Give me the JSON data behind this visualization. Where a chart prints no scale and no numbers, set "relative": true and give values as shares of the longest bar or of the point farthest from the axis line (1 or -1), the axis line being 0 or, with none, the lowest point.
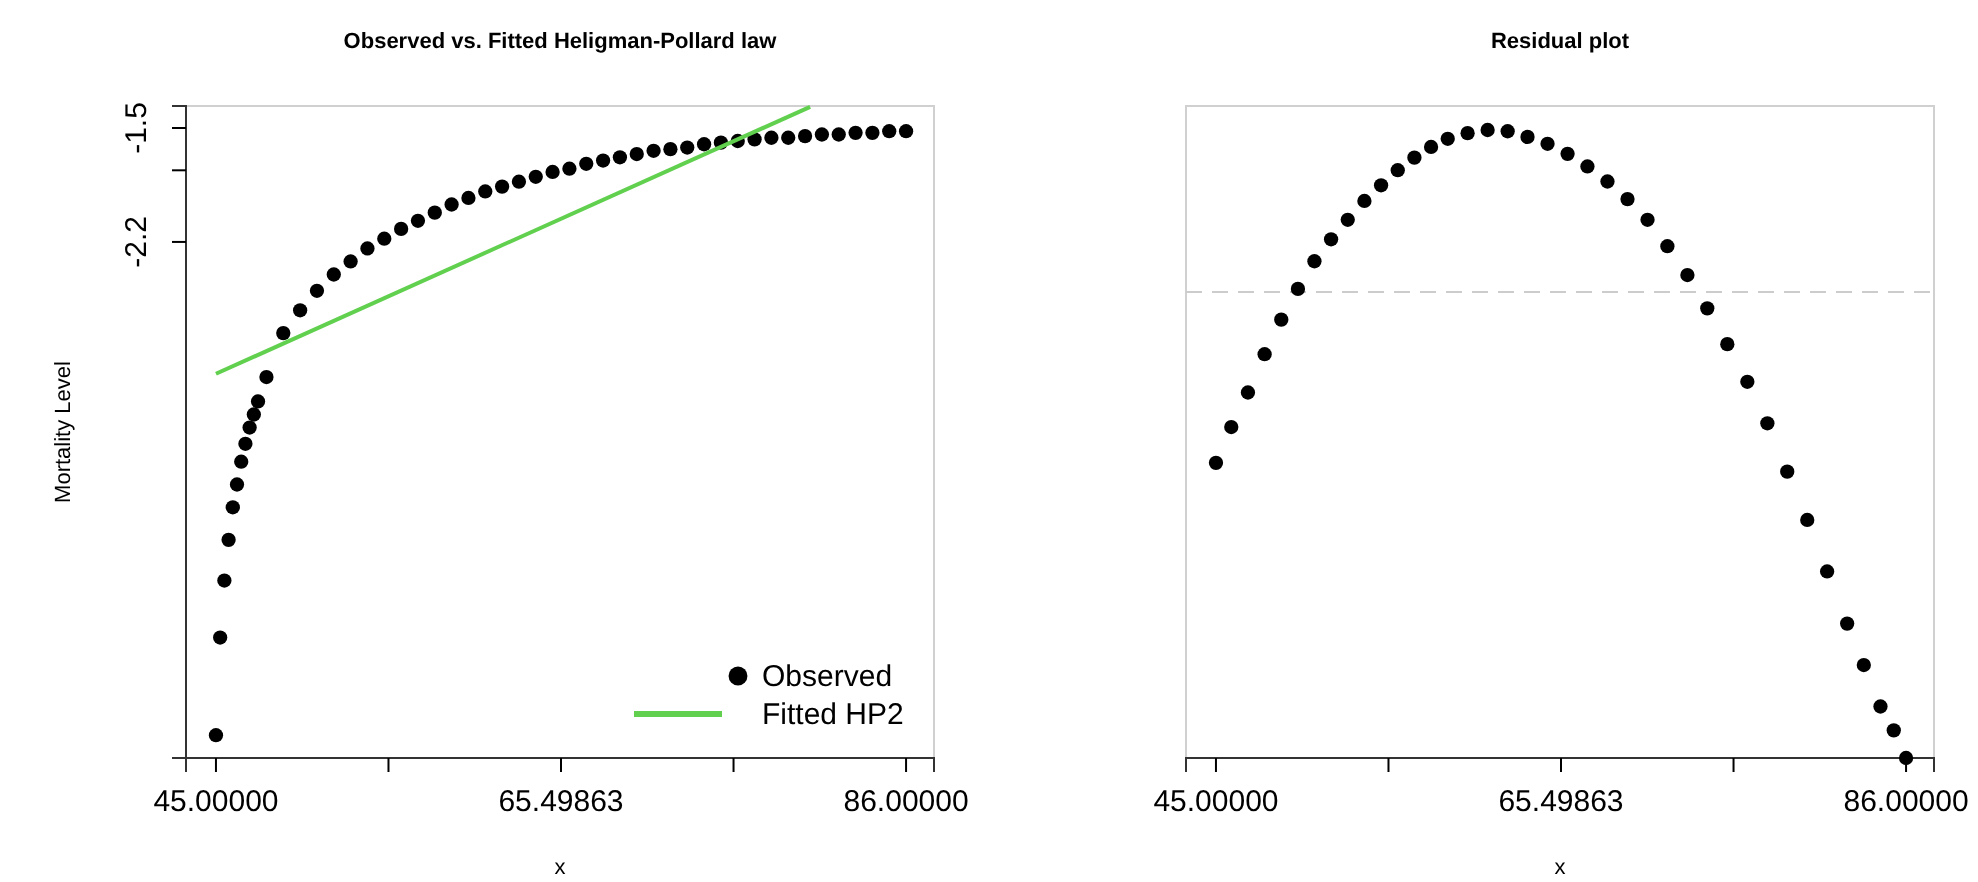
{
  "chart_data": [
    {
      "type": "scatter",
      "title": "Observed vs. Fitted Heligman-Pollard law",
      "xlabel": "x",
      "ylabel": "Mortality Level",
      "xlim": [
        43.22,
        87.66
      ],
      "ylim": [
        -5.37,
        -1.365
      ],
      "xticks": [
        {
          "value": 45,
          "label": "45.00000"
        },
        {
          "value": 55.25,
          "label": null
        },
        65.49863,
        {
          "value": 75.75,
          "label": null
        },
        {
          "value": 86,
          "label": "86.00000"
        }
      ],
      "yticks": [
        -1.5,
        {
          "value": -1.76,
          "label": null
        },
        -2.2
      ],
      "legend": "bottom right",
      "series": [
        {
          "name": "Observed",
          "marker": "circle",
          "color": "#000000",
          "x": [
            45,
            45.25,
            45.5,
            45.75,
            46,
            46.25,
            46.5,
            46.75,
            47,
            47.25,
            47.5,
            48,
            49,
            50,
            51,
            52,
            53,
            54,
            55,
            56,
            57,
            58,
            59,
            60,
            61,
            62,
            63,
            64,
            65,
            66,
            67,
            68,
            69,
            70,
            71,
            72,
            73,
            74,
            75,
            76,
            77,
            78,
            79,
            80,
            81,
            82,
            83,
            84,
            85,
            86
          ],
          "values": [
            -5.23,
            -4.63,
            -4.28,
            -4.03,
            -3.83,
            -3.69,
            -3.55,
            -3.44,
            -3.34,
            -3.26,
            -3.18,
            -3.03,
            -2.76,
            -2.62,
            -2.5,
            -2.4,
            -2.32,
            -2.24,
            -2.18,
            -2.12,
            -2.07,
            -2.02,
            -1.97,
            -1.93,
            -1.89,
            -1.86,
            -1.83,
            -1.8,
            -1.77,
            -1.75,
            -1.72,
            -1.7,
            -1.68,
            -1.66,
            -1.64,
            -1.63,
            -1.62,
            -1.6,
            -1.59,
            -1.58,
            -1.57,
            -1.56,
            -1.56,
            -1.55,
            -1.54,
            -1.54,
            -1.53,
            -1.53,
            -1.52,
            -1.52
          ]
        },
        {
          "name": "Fitted HP2",
          "type": "line",
          "color": "#61d04f",
          "x": [
            45,
            80.3
          ],
          "values": [
            -3.01,
            -1.37
          ]
        }
      ]
    },
    {
      "type": "scatter",
      "title": "Residual plot",
      "xlabel": "x",
      "xlim": [
        43.22,
        87.66
      ],
      "relative": true,
      "xticks": [
        {
          "value": 45,
          "label": "45.00000"
        },
        {
          "value": 55.25,
          "label": null
        },
        65.49863,
        {
          "value": 75.75,
          "label": null
        },
        {
          "value": 86,
          "label": "86.00000"
        }
      ],
      "ref_lines": [
        {
          "axis": "y",
          "value": 0.742,
          "color": "#cccccc",
          "line_style": "dashed"
        }
      ],
      "series": [
        {
          "marker": "circle",
          "color": "#000000",
          "x": [
            45,
            45.91,
            46.9,
            47.89,
            48.88,
            49.87,
            50.85,
            51.84,
            52.83,
            53.82,
            54.81,
            55.8,
            56.79,
            57.78,
            58.77,
            59.95,
            61.14,
            62.33,
            63.51,
            64.7,
            65.89,
            67.07,
            68.26,
            69.45,
            70.64,
            71.82,
            73.01,
            74.19,
            75.38,
            76.57,
            77.76,
            78.94,
            80.13,
            81.31,
            82.5,
            83.49,
            84.48,
            85.27,
            86
          ],
          "values": [
            0.47,
            0.527,
            0.582,
            0.643,
            0.698,
            0.747,
            0.791,
            0.826,
            0.857,
            0.887,
            0.912,
            0.936,
            0.956,
            0.973,
            0.986,
            0.995,
            1,
            0.998,
            0.989,
            0.978,
            0.962,
            0.942,
            0.918,
            0.89,
            0.857,
            0.815,
            0.769,
            0.716,
            0.659,
            0.599,
            0.533,
            0.456,
            0.379,
            0.297,
            0.214,
            0.148,
            0.082,
            0.044,
            0
          ]
        }
      ]
    }
  ]
}
